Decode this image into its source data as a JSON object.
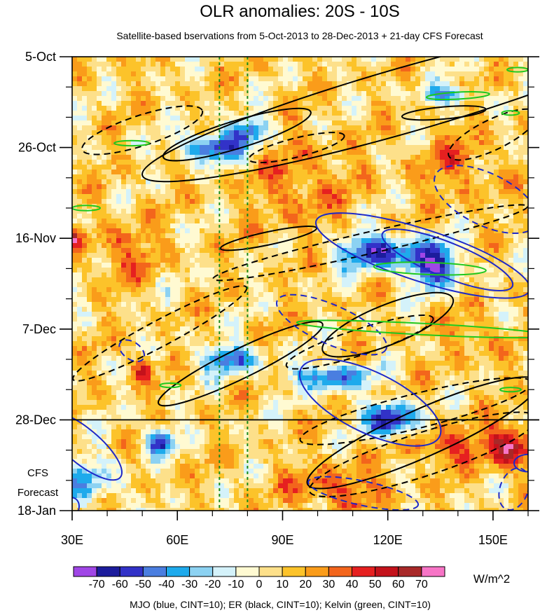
{
  "chart_data": {
    "type": "heatmap",
    "title": "OLR anomalies: 20S - 10S",
    "subtitle": "Satellite-based bservations from 5-Oct-2013 to 28-Dec-2013 + 21-day CFS Forecast",
    "x_axis": {
      "range": [
        30,
        160
      ],
      "ticks": [
        {
          "value": 30,
          "label": "30E"
        },
        {
          "value": 60,
          "label": "60E"
        },
        {
          "value": 90,
          "label": "90E"
        },
        {
          "value": 120,
          "label": "120E"
        },
        {
          "value": 150,
          "label": "150E"
        }
      ]
    },
    "y_axis": {
      "range_days": [
        0,
        105
      ],
      "reversed": true,
      "ticks": [
        {
          "day": 0,
          "label": "5-Oct"
        },
        {
          "day": 21,
          "label": "26-Oct"
        },
        {
          "day": 42,
          "label": "16-Nov"
        },
        {
          "day": 63,
          "label": "7-Dec"
        },
        {
          "day": 84,
          "label": "28-Dec"
        },
        {
          "day": 105,
          "label": "18-Jan"
        }
      ]
    },
    "forecast_start_day": 84,
    "forecast_label_line1": "CFS",
    "forecast_label_line2": "Forecast",
    "reference_longitudes": [
      72,
      80
    ],
    "colorbar": {
      "levels": [
        -70,
        -60,
        -50,
        -40,
        -30,
        -20,
        -10,
        0,
        10,
        20,
        30,
        40,
        50,
        60,
        70
      ],
      "labels": [
        "-70",
        "-60",
        "-50",
        "-40",
        "-30",
        "-20",
        "-10",
        "0",
        "10",
        "20",
        "30",
        "40",
        "50",
        "60",
        "70"
      ],
      "colors": [
        "#a046e6",
        "#1c1c9c",
        "#3232c8",
        "#4a7ee0",
        "#1eaaec",
        "#8cd2f2",
        "#d4f2fa",
        "#fffad2",
        "#fde08a",
        "#fcc32a",
        "#fa9c1a",
        "#f3651c",
        "#e62020",
        "#c4121b",
        "#a82828",
        "#f774c6"
      ],
      "units": "W/m^2"
    },
    "contour_note": "MJO (blue, CINT=10); ER (black, CINT=10); Kelvin (green, CINT=10)",
    "contour_colors": {
      "MJO": "#1e28c8",
      "ER": "#000000",
      "Kelvin": "#1ec81e"
    },
    "ref_line_color": "#1a8a1a",
    "anomaly_features": [
      {
        "lon": 70,
        "day": 21,
        "value": -70,
        "lon_spread": 9,
        "day_spread": 3
      },
      {
        "lon": 80,
        "day": 17,
        "value": -55,
        "lon_spread": 6,
        "day_spread": 3
      },
      {
        "lon": 137,
        "day": 9,
        "value": -50,
        "lon_spread": 8,
        "day_spread": 2
      },
      {
        "lon": 116,
        "day": 45,
        "value": -65,
        "lon_spread": 11,
        "day_spread": 4
      },
      {
        "lon": 133,
        "day": 48,
        "value": -70,
        "lon_spread": 8,
        "day_spread": 5
      },
      {
        "lon": 121,
        "day": 84,
        "value": -75,
        "lon_spread": 7,
        "day_spread": 4
      },
      {
        "lon": 104,
        "day": 74,
        "value": -60,
        "lon_spread": 10,
        "day_spread": 3
      },
      {
        "lon": 75,
        "day": 70,
        "value": -60,
        "lon_spread": 8,
        "day_spread": 3
      },
      {
        "lon": 55,
        "day": 89,
        "value": -70,
        "lon_spread": 4,
        "day_spread": 3
      },
      {
        "lon": 35,
        "day": 98,
        "value": -35,
        "lon_spread": 8,
        "day_spread": 6
      },
      {
        "lon": 30,
        "day": 42,
        "value": 45,
        "lon_spread": 3,
        "day_spread": 2
      },
      {
        "lon": 155,
        "day": 90,
        "value": 55,
        "lon_spread": 7,
        "day_spread": 5
      },
      {
        "lon": 137,
        "day": 90,
        "value": 35,
        "lon_spread": 10,
        "day_spread": 4
      },
      {
        "lon": 50,
        "day": 72,
        "value": 40,
        "lon_spread": 3,
        "day_spread": 3
      },
      {
        "lon": 105,
        "day": 100,
        "value": 30,
        "lon_spread": 14,
        "day_spread": 5
      },
      {
        "lon": 45,
        "day": 45,
        "value": 25,
        "lon_spread": 10,
        "day_spread": 6
      },
      {
        "lon": 95,
        "day": 30,
        "value": 20,
        "lon_spread": 14,
        "day_spread": 12
      },
      {
        "lon": 140,
        "day": 25,
        "value": 20,
        "lon_spread": 12,
        "day_spread": 8
      },
      {
        "lon": 145,
        "day": 65,
        "value": 20,
        "lon_spread": 8,
        "day_spread": 5
      }
    ],
    "contours": {
      "ER_solid": [
        {
          "cx_lon": 125,
          "cx_day": 10,
          "rx_lon": 78,
          "ry_day": 7.5,
          "angle": -16
        },
        {
          "cx_lon": 77,
          "cx_day": 18,
          "rx_lon": 22,
          "ry_day": 3.2,
          "angle": -17
        },
        {
          "cx_lon": 86,
          "cx_day": 42,
          "rx_lon": 14,
          "ry_day": 1.5,
          "angle": -12
        },
        {
          "cx_lon": 78,
          "cx_day": 71,
          "rx_lon": 26,
          "ry_day": 3.4,
          "angle": -26
        },
        {
          "cx_lon": 120,
          "cx_day": 62,
          "rx_lon": 20,
          "ry_day": 4.6,
          "angle": -22
        },
        {
          "cx_lon": 130,
          "cx_day": 87,
          "rx_lon": 36,
          "ry_day": 5.5,
          "angle": -24
        },
        {
          "cx_lon": 136,
          "cx_day": 13,
          "rx_lon": 12,
          "ry_day": 1.4,
          "angle": -5
        }
      ],
      "ER_dashed": [
        {
          "cx_lon": 50,
          "cx_day": 17,
          "rx_lon": 18,
          "ry_day": 3.5,
          "angle": -18
        },
        {
          "cx_lon": 94,
          "cx_day": 21,
          "rx_lon": 14,
          "ry_day": 2.2,
          "angle": -14
        },
        {
          "cx_lon": 115,
          "cx_day": 43,
          "rx_lon": 46,
          "ry_day": 2.5,
          "angle": -13
        },
        {
          "cx_lon": 55,
          "cx_day": 64,
          "rx_lon": 28,
          "ry_day": 3,
          "angle": -28
        },
        {
          "cx_lon": 112,
          "cx_day": 66,
          "rx_lon": 22,
          "ry_day": 3,
          "angle": -18
        },
        {
          "cx_lon": 128,
          "cx_day": 82,
          "rx_lon": 34,
          "ry_day": 4,
          "angle": -14
        },
        {
          "cx_lon": 130,
          "cx_day": 92,
          "rx_lon": 34,
          "ry_day": 5,
          "angle": -18
        },
        {
          "cx_lon": 150,
          "cx_day": 18,
          "rx_lon": 14,
          "ry_day": 3.5,
          "angle": -26
        }
      ],
      "MJO_solid": [
        {
          "cx_lon": 130,
          "cx_day": 46,
          "rx_lon": 32,
          "ry_day": 6,
          "angle": 18
        },
        {
          "cx_lon": 137,
          "cx_day": 47,
          "rx_lon": 20,
          "ry_day": 4,
          "angle": 22
        },
        {
          "cx_lon": 115,
          "cx_day": 80,
          "rx_lon": 22,
          "ry_day": 7,
          "angle": 26
        },
        {
          "cx_lon": 33,
          "cx_day": 90,
          "rx_lon": 14,
          "ry_day": 4,
          "angle": 40
        },
        {
          "cx_lon": 30,
          "cx_day": 104,
          "rx_lon": 2,
          "ry_day": 2,
          "angle": 0
        },
        {
          "cx_lon": 160,
          "cx_day": 94,
          "rx_lon": 4,
          "ry_day": 2,
          "angle": 0
        }
      ],
      "MJO_dashed": [
        {
          "cx_lon": 104,
          "cx_day": 62,
          "rx_lon": 17,
          "ry_day": 4.5,
          "angle": 24
        },
        {
          "cx_lon": 148,
          "cx_day": 33,
          "rx_lon": 16,
          "ry_day": 6,
          "angle": 26
        },
        {
          "cx_lon": 113,
          "cx_day": 101,
          "rx_lon": 16,
          "ry_day": 2.8,
          "angle": 12
        },
        {
          "cx_lon": 47,
          "cx_day": 68,
          "rx_lon": 4,
          "ry_day": 2,
          "angle": 35
        },
        {
          "cx_lon": 156,
          "cx_day": 100,
          "rx_lon": 4,
          "ry_day": 5,
          "angle": 20
        }
      ],
      "Kelvin": [
        {
          "cx_lon": 140,
          "cx_day": 9,
          "rx_lon": 9,
          "ry_day": 0.8,
          "angle": -3
        },
        {
          "cx_lon": 130,
          "cx_day": 63,
          "rx_lon": 36,
          "ry_day": 1.3,
          "angle": 3
        },
        {
          "cx_lon": 132,
          "cx_day": 49,
          "rx_lon": 16,
          "ry_day": 1.4,
          "angle": 2
        },
        {
          "cx_lon": 47,
          "cx_day": 20,
          "rx_lon": 5,
          "ry_day": 0.6,
          "angle": 0
        },
        {
          "cx_lon": 34,
          "cx_day": 35,
          "rx_lon": 4,
          "ry_day": 0.6,
          "angle": 0
        },
        {
          "cx_lon": 157,
          "cx_day": 3,
          "rx_lon": 3,
          "ry_day": 0.5,
          "angle": 0
        },
        {
          "cx_lon": 155,
          "cx_day": 13,
          "rx_lon": 2.5,
          "ry_day": 0.5,
          "angle": 0
        },
        {
          "cx_lon": 155,
          "cx_day": 77,
          "rx_lon": 3,
          "ry_day": 0.5,
          "angle": 0
        },
        {
          "cx_lon": 58,
          "cx_day": 76,
          "rx_lon": 3,
          "ry_day": 0.5,
          "angle": 0
        }
      ]
    }
  }
}
